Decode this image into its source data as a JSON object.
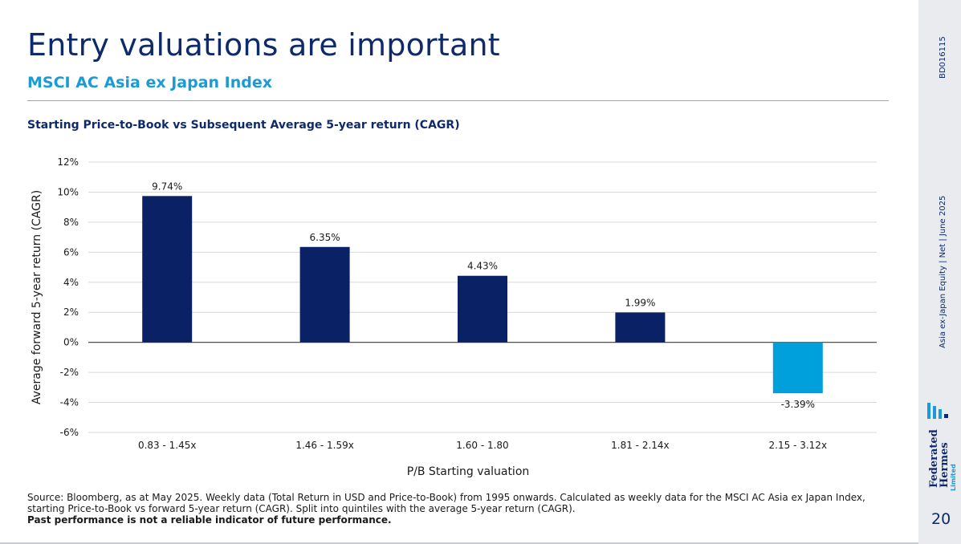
{
  "header": {
    "title": "Entry valuations are important",
    "subtitle": "MSCI AC Asia ex Japan Index",
    "chart_heading": "Starting Price-to-Book vs Subsequent Average 5-year return (CAGR)"
  },
  "chart_data": {
    "type": "bar",
    "title": "Starting Price-to-Book vs Subsequent Average 5-year return (CAGR)",
    "xlabel": "P/B Starting valuation",
    "ylabel": "Average forward 5-year return (CAGR)",
    "categories": [
      "0.83 - 1.45x",
      "1.46 - 1.59x",
      "1.60 - 1.80",
      "1.81 - 2.14x",
      "2.15 - 3.12x"
    ],
    "values": [
      9.74,
      6.35,
      4.43,
      1.99,
      -3.39
    ],
    "value_labels": [
      "9.74%",
      "6.35%",
      "4.43%",
      "1.99%",
      "-3.39%"
    ],
    "ylim": [
      -6,
      12
    ],
    "yticks": [
      12,
      10,
      8,
      6,
      4,
      2,
      0,
      -2,
      -4,
      -6
    ],
    "ytick_labels": [
      "12%",
      "10%",
      "8%",
      "6%",
      "4%",
      "2%",
      "0%",
      "-2%",
      "-4%",
      "-6%"
    ],
    "grid": true,
    "colors": {
      "positive": "#0a2165",
      "negative": "#00a0dd"
    }
  },
  "footer": {
    "source": "Source: Bloomberg, as at May 2025. Weekly data (Total Return in USD and Price-to-Book) from 1995 onwards. Calculated as weekly data for the MSCI AC Asia ex Japan Index, starting Price-to-Book vs forward 5-year return (CAGR). Split into quintiles with the average 5-year return (CAGR).",
    "disclaimer": "Past performance is not a reliable indicator of future performance."
  },
  "sidebar": {
    "doc_code": "BD016115",
    "doc_info": "Asia ex-Japan Equity  |  Net  |  June 2025",
    "page_number": "20",
    "logo_text_1": "Federated",
    "logo_text_2": "Hermes",
    "logo_text_3": "Limited"
  }
}
